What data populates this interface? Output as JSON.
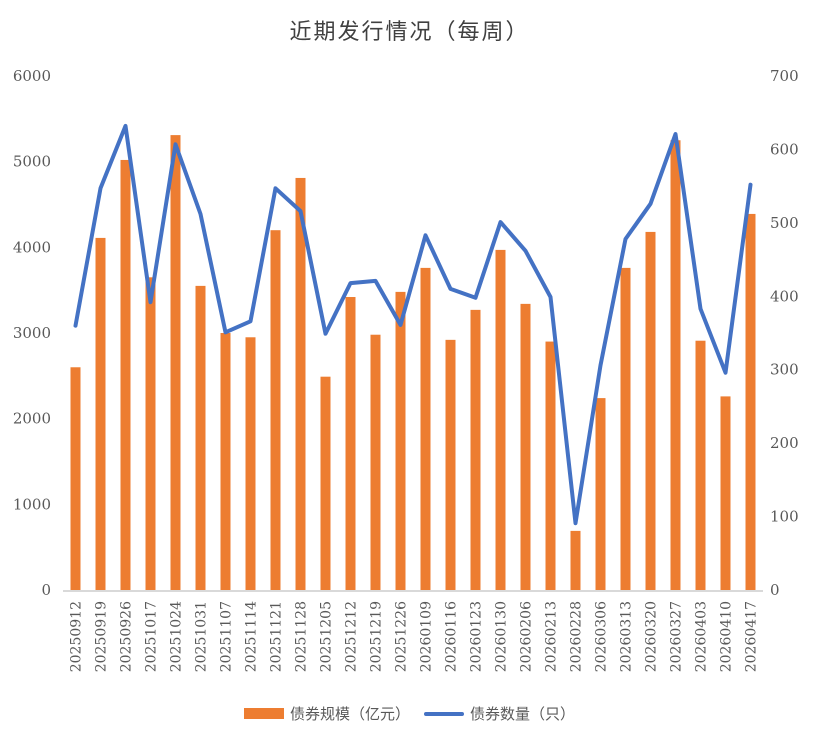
{
  "chart_data": {
    "type": "bar+line",
    "title": "近期发行情况（每周）",
    "categories": [
      "20250912",
      "20250919",
      "20250926",
      "20251017",
      "20251024",
      "20251031",
      "20251107",
      "20251114",
      "20251121",
      "20251128",
      "20251205",
      "20251212",
      "20251219",
      "20251226",
      "20260109",
      "20260116",
      "20260123",
      "20260130",
      "20260206",
      "20260213",
      "20260228",
      "20260306",
      "20260313",
      "20260320",
      "20260327",
      "20260403",
      "20260410",
      "20260417"
    ],
    "series": [
      {
        "name": "债券规模（亿元）",
        "type": "bar",
        "axis": "left",
        "color": "#ED7D31",
        "values": [
          2600,
          4110,
          5020,
          3650,
          5310,
          3550,
          3000,
          2950,
          4200,
          4810,
          2490,
          3420,
          2980,
          3480,
          3760,
          2920,
          3270,
          3970,
          3340,
          2900,
          690,
          2240,
          3760,
          4180,
          5250,
          2910,
          2260,
          4390
        ]
      },
      {
        "name": "债券数量（只）",
        "type": "line",
        "axis": "right",
        "color": "#4472C4",
        "values": [
          360,
          547,
          632,
          392,
          607,
          512,
          351,
          366,
          547,
          516,
          349,
          418,
          421,
          361,
          483,
          410,
          398,
          501,
          462,
          399,
          91,
          306,
          478,
          526,
          621,
          383,
          296,
          552
        ]
      }
    ],
    "left_axis": {
      "min": 0,
      "max": 6000,
      "ticks": [
        0,
        1000,
        2000,
        3000,
        4000,
        5000,
        6000
      ]
    },
    "right_axis": {
      "min": 0,
      "max": 700,
      "ticks": [
        0,
        100,
        200,
        300,
        400,
        500,
        600,
        700
      ]
    },
    "grid": false,
    "legend_position": "bottom"
  },
  "legend": {
    "bar_label": "债券规模（亿元）",
    "line_label": "债券数量（只）"
  }
}
